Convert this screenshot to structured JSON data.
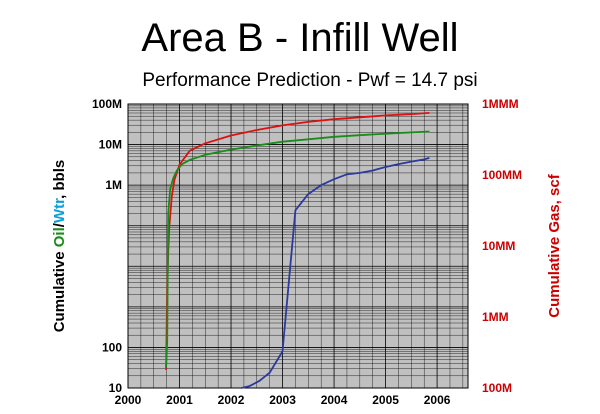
{
  "chart_data": {
    "type": "line",
    "title": "Area B - Infill Well",
    "subtitle": "Performance Prediction - Pwf = 14.7 psi",
    "ylabel": {
      "prefix": "Cumulative ",
      "oil": "Oil",
      "slash": "/",
      "water": "Wtr",
      "suffix": ", bbls"
    },
    "y2label": "Cumulative Gas, scf",
    "yscale": "log",
    "ylim": [
      10,
      100000000
    ],
    "y2lim": [
      100000000,
      1000000000000
    ],
    "xlim": [
      2000,
      2006.6
    ],
    "grid": true,
    "x_ticks": [
      "2000",
      "2001",
      "2002",
      "2003",
      "2004",
      "2005",
      "2006"
    ],
    "y_ticks": [
      {
        "value": 10,
        "label": "10"
      },
      {
        "value": 100,
        "label": "100"
      },
      {
        "value": 1000000,
        "label": "1M"
      },
      {
        "value": 10000000,
        "label": "10M"
      },
      {
        "value": 100000000,
        "label": "100M"
      }
    ],
    "y2_ticks": [
      {
        "value": 100000000,
        "label": "100M"
      },
      {
        "value": 1000000000,
        "label": "1MM"
      },
      {
        "value": 10000000000,
        "label": "10MM"
      },
      {
        "value": 100000000000,
        "label": "100MM"
      },
      {
        "value": 1000000000000,
        "label": "1MMM"
      }
    ],
    "colors": {
      "oil": "#1a8c1a",
      "water": "#0e9fd6",
      "gas": "#dd1111",
      "water_line": "#2b3a9c",
      "plot_bg": "#c0c0c0"
    },
    "series": [
      {
        "name": "Gas",
        "axis": "right",
        "color": "#dd1111",
        "x": [
          2000.74,
          2000.76,
          2000.78,
          2000.8,
          2000.85,
          2000.9,
          2001.0,
          2001.2,
          2001.5,
          2002.0,
          2002.5,
          2003.0,
          2003.5,
          2004.0,
          2004.5,
          2005.0,
          2005.5,
          2005.85
        ],
        "y": [
          180000000,
          2500000000,
          8000000000,
          18000000000,
          50000000000,
          85000000000,
          140000000000,
          220000000000,
          280000000000,
          360000000000,
          430000000000,
          500000000000,
          560000000000,
          610000000000,
          650000000000,
          690000000000,
          720000000000,
          750000000000
        ]
      },
      {
        "name": "Oil",
        "axis": "left",
        "color": "#1a8c1a",
        "x": [
          2000.74,
          2000.76,
          2000.78,
          2000.82,
          2000.88,
          2000.95,
          2001.05,
          2001.2,
          2001.5,
          2002.0,
          2002.5,
          2003.0,
          2003.5,
          2004.0,
          2004.5,
          2005.0,
          2005.5,
          2005.85
        ],
        "y": [
          33,
          140,
          200000,
          800000,
          1500000,
          2300000,
          3300000,
          4200000,
          5600000,
          7500000,
          9500000,
          11800000,
          13500000,
          15500000,
          17000000,
          18500000,
          20000000,
          21000000
        ]
      },
      {
        "name": "Wtr",
        "axis": "left",
        "color": "#2b3a9c",
        "x": [
          2002.2,
          2002.35,
          2002.55,
          2002.75,
          2003.0,
          2003.25,
          2003.5,
          2003.75,
          2004.0,
          2004.25,
          2004.5,
          2004.75,
          2005.0,
          2005.25,
          2005.5,
          2005.75,
          2005.85
        ],
        "y": [
          10,
          11,
          15,
          24,
          80,
          240000,
          600000,
          1000000,
          1400000,
          1850000,
          2000000,
          2300000,
          2800000,
          3300000,
          3800000,
          4300000,
          4700000
        ]
      }
    ]
  }
}
